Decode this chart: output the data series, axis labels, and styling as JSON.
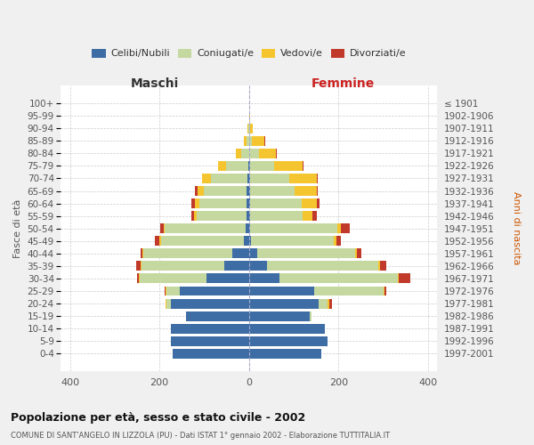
{
  "age_groups": [
    "0-4",
    "5-9",
    "10-14",
    "15-19",
    "20-24",
    "25-29",
    "30-34",
    "35-39",
    "40-44",
    "45-49",
    "50-54",
    "55-59",
    "60-64",
    "65-69",
    "70-74",
    "75-79",
    "80-84",
    "85-89",
    "90-94",
    "95-99",
    "100+"
  ],
  "birth_years": [
    "1997-2001",
    "1992-1996",
    "1987-1991",
    "1982-1986",
    "1977-1981",
    "1972-1976",
    "1967-1971",
    "1962-1966",
    "1957-1961",
    "1952-1956",
    "1947-1951",
    "1942-1946",
    "1937-1941",
    "1932-1936",
    "1927-1931",
    "1922-1926",
    "1917-1921",
    "1912-1916",
    "1907-1911",
    "1902-1906",
    "≤ 1901"
  ],
  "maschi": {
    "celibi": [
      170,
      175,
      175,
      140,
      175,
      155,
      95,
      55,
      38,
      12,
      8,
      6,
      5,
      5,
      3,
      2,
      0,
      0,
      0,
      0,
      0
    ],
    "coniugati": [
      0,
      0,
      0,
      0,
      10,
      30,
      150,
      185,
      198,
      185,
      180,
      110,
      105,
      95,
      82,
      50,
      18,
      6,
      2,
      0,
      0
    ],
    "vedovi": [
      0,
      0,
      0,
      0,
      2,
      2,
      2,
      2,
      2,
      3,
      3,
      6,
      10,
      15,
      20,
      18,
      12,
      6,
      2,
      0,
      0
    ],
    "divorziati": [
      0,
      0,
      0,
      0,
      0,
      2,
      2,
      10,
      5,
      10,
      8,
      6,
      8,
      6,
      0,
      0,
      0,
      0,
      0,
      0,
      0
    ]
  },
  "femmine": {
    "nubili": [
      162,
      175,
      170,
      135,
      155,
      145,
      68,
      40,
      18,
      5,
      2,
      2,
      2,
      2,
      2,
      2,
      0,
      0,
      0,
      0,
      0
    ],
    "coniugate": [
      0,
      0,
      0,
      5,
      20,
      155,
      265,
      248,
      218,
      185,
      195,
      118,
      115,
      100,
      88,
      55,
      22,
      6,
      2,
      0,
      0
    ],
    "vedove": [
      0,
      0,
      0,
      0,
      5,
      2,
      2,
      4,
      4,
      5,
      8,
      22,
      35,
      50,
      62,
      62,
      38,
      28,
      6,
      2,
      0
    ],
    "divorziate": [
      0,
      0,
      0,
      0,
      5,
      5,
      25,
      15,
      10,
      10,
      20,
      10,
      5,
      2,
      2,
      2,
      2,
      2,
      0,
      0,
      0
    ]
  },
  "colors": {
    "celibi_nubili": "#3d6da4",
    "coniugati": "#c5d8a0",
    "vedovi": "#f5c530",
    "divorziati": "#c0392b"
  },
  "xlim": 420,
  "xticks": [
    -400,
    -200,
    0,
    200,
    400
  ],
  "title": "Popolazione per età, sesso e stato civile - 2002",
  "subtitle": "COMUNE DI SANT'ANGELO IN LIZZOLA (PU) - Dati ISTAT 1° gennaio 2002 - Elaborazione TUTTITALIA.IT",
  "ylabel": "Fasce di età",
  "ylabel_right": "Anni di nascita",
  "xlabel_left": "Maschi",
  "xlabel_right": "Femmine",
  "bg_color": "#f0f0f0",
  "plot_bg": "#ffffff",
  "legend": [
    "Celibi/Nubili",
    "Coniugati/e",
    "Vedovi/e",
    "Divorziati/e"
  ]
}
